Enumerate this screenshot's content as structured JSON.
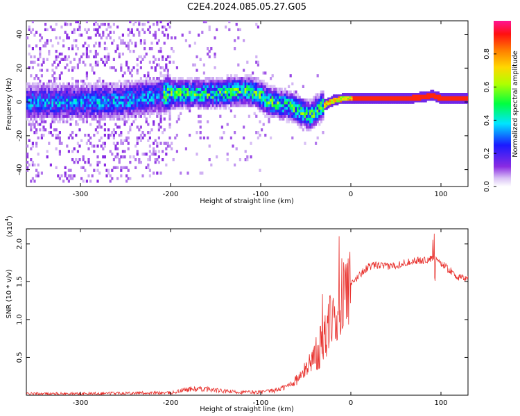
{
  "title": "C2E4.2024.085.05.27.G05",
  "chart_data": [
    {
      "type": "heatmap",
      "xlabel": "Height of straight line (km)",
      "ylabel": "Frequency (Hz)",
      "xlim": [
        -360,
        130
      ],
      "ylim": [
        -50,
        48
      ],
      "x_ticks": [
        -300,
        -200,
        -100,
        0,
        100
      ],
      "y_ticks": [
        -40,
        -20,
        0,
        20,
        40
      ],
      "colorbar": {
        "label": "Normalized spectral amplitude",
        "range": [
          0,
          1
        ],
        "ticks": [
          "0.0",
          "0.2",
          "0.4",
          "0.6",
          "0.8"
        ]
      },
      "ridge": {
        "x": [
          -360,
          -300,
          -250,
          -200,
          -150,
          -120,
          -105,
          -90,
          -70,
          -55,
          -45,
          -35,
          -20,
          -10,
          0,
          30,
          60,
          80,
          90,
          100,
          130
        ],
        "frequency": [
          0,
          0,
          1,
          5,
          5,
          7,
          5,
          0,
          -2,
          -6,
          -8,
          -3,
          1,
          2,
          2,
          2,
          2,
          3,
          4,
          2,
          2
        ]
      }
    },
    {
      "type": "line",
      "xlabel": "Height of straight line (km)",
      "ylabel": "SNR (10 * v/v)",
      "y_multiplier": "(x10",
      "y_multiplier_exp": "4",
      "xlim": [
        -360,
        130
      ],
      "ylim": [
        0,
        2.2
      ],
      "x_ticks": [
        -300,
        -200,
        -100,
        0,
        100
      ],
      "y_ticks": [
        "0.5",
        "1.0",
        "1.5",
        "2.0"
      ],
      "series": [
        {
          "color": "#e8302c",
          "x": [
            -360,
            -300,
            -250,
            -200,
            -180,
            -160,
            -140,
            -120,
            -100,
            -85,
            -70,
            -55,
            -45,
            -35,
            -28,
            -22,
            -15,
            -8,
            0,
            10,
            20,
            30,
            40,
            50,
            60,
            70,
            80,
            90,
            95,
            100,
            110,
            120,
            130
          ],
          "values": [
            0.02,
            0.02,
            0.03,
            0.03,
            0.08,
            0.08,
            0.05,
            0.04,
            0.04,
            0.06,
            0.12,
            0.25,
            0.45,
            0.6,
            0.8,
            1.0,
            1.2,
            1.35,
            1.45,
            1.6,
            1.7,
            1.72,
            1.7,
            1.72,
            1.75,
            1.78,
            1.78,
            1.8,
            1.82,
            1.75,
            1.65,
            1.55,
            1.55
          ]
        }
      ]
    }
  ]
}
